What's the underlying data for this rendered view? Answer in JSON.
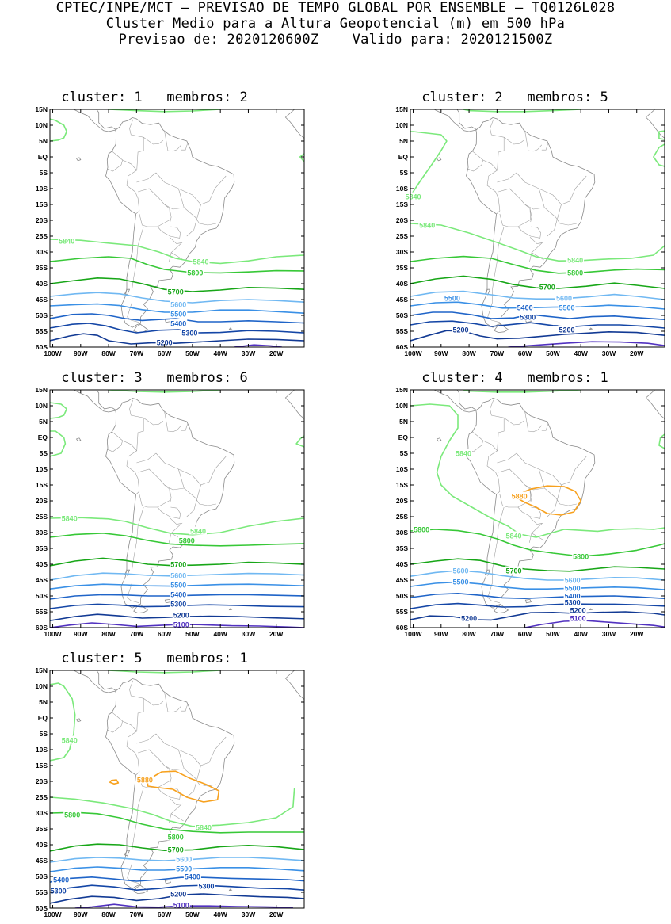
{
  "header": {
    "line1": "CPTEC/INPE/MCT – PREVISAO DE TEMPO GLOBAL POR ENSEMBLE – TQ0126L028",
    "line2": "Cluster Medio para a Altura Geopotencial (m) em 500 hPa",
    "line3": "Previsao de: 2020120600Z    Valido para: 2020121500Z"
  },
  "axes": {
    "lat_labels": [
      "15N",
      "10N",
      "5N",
      "EQ",
      "5S",
      "10S",
      "15S",
      "20S",
      "25S",
      "30S",
      "35S",
      "40S",
      "45S",
      "50S",
      "55S",
      "60S"
    ],
    "lon_labels": [
      "100W",
      "90W",
      "80W",
      "70W",
      "60W",
      "50W",
      "40W",
      "30W",
      "20W"
    ]
  },
  "contour_colors": {
    "5880": "#f7a11e",
    "5840": "#7be97b",
    "5800": "#37c837",
    "5700": "#17a617",
    "5600": "#70b8f2",
    "5500": "#3a90e6",
    "5400": "#1f64c8",
    "5300": "#1446a6",
    "5200": "#123a94",
    "5100": "#5232c0"
  },
  "panels": [
    {
      "title": "cluster: 1   membros: 2",
      "labels": [
        {
          "text": "5840",
          "lon": -95,
          "lat": -26.5
        },
        {
          "text": "5840",
          "lon": -47,
          "lat": -33
        },
        {
          "text": "5800",
          "lon": -49,
          "lat": -36.5
        },
        {
          "text": "5700",
          "lon": -56,
          "lat": -42.5
        },
        {
          "text": "5600",
          "lon": -55,
          "lat": -46.5
        },
        {
          "text": "5500",
          "lon": -55,
          "lat": -49.5
        },
        {
          "text": "5400",
          "lon": -55,
          "lat": -52.5
        },
        {
          "text": "5300",
          "lon": -51,
          "lat": -55.5
        },
        {
          "text": "5200",
          "lon": -60,
          "lat": -58.5
        }
      ]
    },
    {
      "title": "cluster: 2   membros: 5",
      "labels": [
        {
          "text": "5840",
          "lon": -100,
          "lat": -12.5
        },
        {
          "text": "5840",
          "lon": -95,
          "lat": -21.5
        },
        {
          "text": "5840",
          "lon": -42,
          "lat": -32.5
        },
        {
          "text": "5800",
          "lon": -42,
          "lat": -36.5
        },
        {
          "text": "5700",
          "lon": -52,
          "lat": -41
        },
        {
          "text": "5600",
          "lon": -46,
          "lat": -44.5
        },
        {
          "text": "5500",
          "lon": -86,
          "lat": -44.5
        },
        {
          "text": "5500",
          "lon": -45,
          "lat": -47.5
        },
        {
          "text": "5400",
          "lon": -60,
          "lat": -47.5
        },
        {
          "text": "5300",
          "lon": -59,
          "lat": -50.5
        },
        {
          "text": "5200",
          "lon": -83,
          "lat": -54.5
        },
        {
          "text": "5200",
          "lon": -45,
          "lat": -54.5
        }
      ]
    },
    {
      "title": "cluster: 3   membros: 6",
      "labels": [
        {
          "text": "5840",
          "lon": -94,
          "lat": -25.5
        },
        {
          "text": "5840",
          "lon": -48,
          "lat": -29.5
        },
        {
          "text": "5800",
          "lon": -52,
          "lat": -32.5
        },
        {
          "text": "5700",
          "lon": -55,
          "lat": -40
        },
        {
          "text": "5600",
          "lon": -55,
          "lat": -43.5
        },
        {
          "text": "5500",
          "lon": -55,
          "lat": -46.5
        },
        {
          "text": "5400",
          "lon": -55,
          "lat": -49.5
        },
        {
          "text": "5300",
          "lon": -55,
          "lat": -52.5
        },
        {
          "text": "5200",
          "lon": -54,
          "lat": -56
        },
        {
          "text": "5100",
          "lon": -54,
          "lat": -59
        }
      ]
    },
    {
      "title": "cluster: 4   membros: 1",
      "labels": [
        {
          "text": "5840",
          "lon": -82,
          "lat": -5
        },
        {
          "text": "5880",
          "lon": -62,
          "lat": -18.5
        },
        {
          "text": "5800",
          "lon": -97,
          "lat": -29
        },
        {
          "text": "5840",
          "lon": -64,
          "lat": -31
        },
        {
          "text": "5800",
          "lon": -40,
          "lat": -37.5
        },
        {
          "text": "5700",
          "lon": -64,
          "lat": -42
        },
        {
          "text": "5600",
          "lon": -83,
          "lat": -42
        },
        {
          "text": "5600",
          "lon": -43,
          "lat": -45
        },
        {
          "text": "5500",
          "lon": -83,
          "lat": -45.5
        },
        {
          "text": "5500",
          "lon": -43,
          "lat": -47.5
        },
        {
          "text": "5400",
          "lon": -43,
          "lat": -50
        },
        {
          "text": "5300",
          "lon": -43,
          "lat": -52
        },
        {
          "text": "5200",
          "lon": -41,
          "lat": -54.5
        },
        {
          "text": "5200",
          "lon": -80,
          "lat": -57
        },
        {
          "text": "5100",
          "lon": -41,
          "lat": -57
        }
      ]
    },
    {
      "title": "cluster: 5   membros: 1",
      "labels": [
        {
          "text": "5840",
          "lon": -94,
          "lat": -7
        },
        {
          "text": "5880",
          "lon": -67,
          "lat": -19.5
        },
        {
          "text": "5800",
          "lon": -93,
          "lat": -30.5
        },
        {
          "text": "5840",
          "lon": -46,
          "lat": -34.5
        },
        {
          "text": "5800",
          "lon": -56,
          "lat": -37.5
        },
        {
          "text": "5700",
          "lon": -56,
          "lat": -41.5
        },
        {
          "text": "5600",
          "lon": -53,
          "lat": -44.5
        },
        {
          "text": "5500",
          "lon": -53,
          "lat": -47.5
        },
        {
          "text": "5400",
          "lon": -97,
          "lat": -51
        },
        {
          "text": "5400",
          "lon": -50,
          "lat": -50
        },
        {
          "text": "5300",
          "lon": -98,
          "lat": -54.5
        },
        {
          "text": "5300",
          "lon": -45,
          "lat": -53
        },
        {
          "text": "5200",
          "lon": -55,
          "lat": -55.5
        },
        {
          "text": "5100",
          "lon": -54,
          "lat": -59
        }
      ]
    }
  ]
}
